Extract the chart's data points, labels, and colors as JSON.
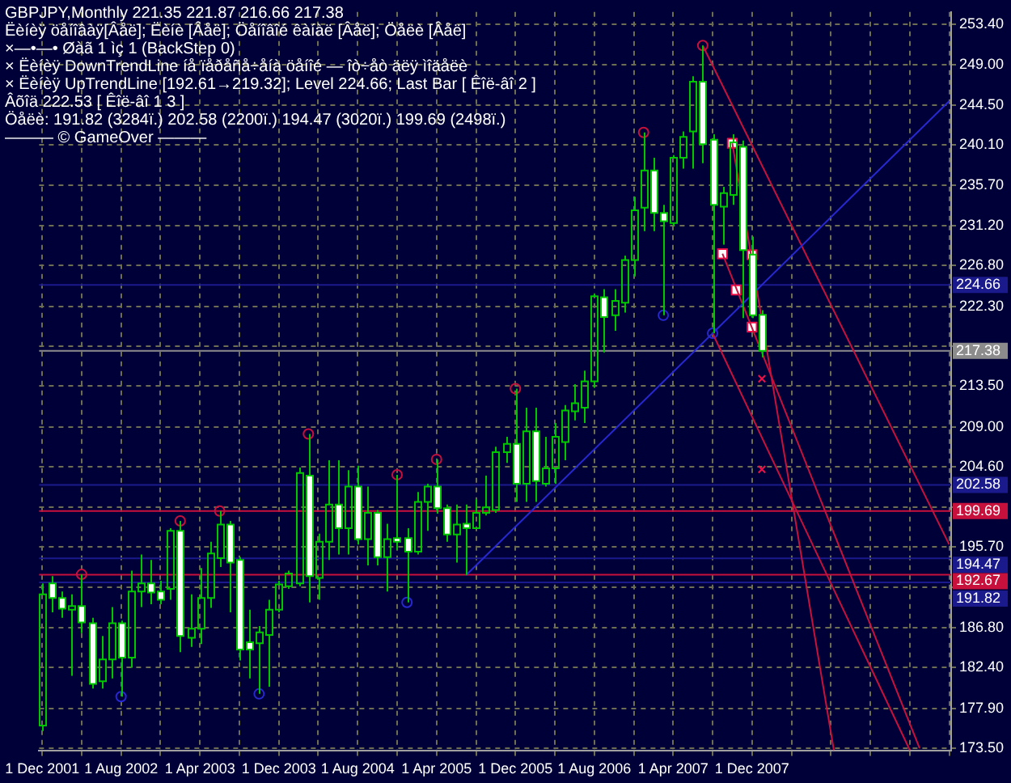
{
  "chart_data": {
    "type": "candlestick",
    "title": "GBPJPY,Monthly  221.35 221.87 216.66 217.38",
    "annotations": [
      "Ëèíèÿ öåíîâàÿ[Âåë]; Ëèíè [Âåë]; Öåíîâîé êàíàë [Âåë]; Öåëè [Âåë]",
      "×—•—• Øàã 1 ìç 1 (BackStep 0)",
      "× Ëèíèÿ DownTrendLine íå ïåðåñå÷åíà öåíîé — îò÷åò äëÿ ìîäåëè",
      "× Ëèíèÿ UpTrendLine [192.61→219.32]; Level 224.66; Last Bar [ Êîë-âî 2 ]",
      "Âõîä 222.53 [ Êîë-âî 1 3 ]",
      "Öåëè: 191.82 (3284ï.) 202.58 (2200ï.) 194.47 (3020ï.) 199.69 (2498ï.)",
      "——— © GameOver ———"
    ],
    "xlim": [
      "2001-11-22",
      "2009-08-07"
    ],
    "xticks": [
      {
        "value": "2001-12",
        "label": "1 Dec 2001"
      },
      {
        "value": "2002-04",
        "label": null
      },
      {
        "value": "2002-08",
        "label": "1 Aug 2002"
      },
      {
        "value": "2002-12",
        "label": null
      },
      {
        "value": "2003-04",
        "label": "1 Apr 2003"
      },
      {
        "value": "2003-08",
        "label": null
      },
      {
        "value": "2003-12",
        "label": "1 Dec 2003"
      },
      {
        "value": "2004-04",
        "label": null
      },
      {
        "value": "2004-08",
        "label": "1 Aug 2004"
      },
      {
        "value": "2004-12",
        "label": null
      },
      {
        "value": "2005-04",
        "label": "1 Apr 2005"
      },
      {
        "value": "2005-08",
        "label": null
      },
      {
        "value": "2005-12",
        "label": "1 Dec 2005"
      },
      {
        "value": "2006-04",
        "label": null
      },
      {
        "value": "2006-08",
        "label": "1 Aug 2006"
      },
      {
        "value": "2006-12",
        "label": null
      },
      {
        "value": "2007-04",
        "label": "1 Apr 2007"
      },
      {
        "value": "2007-08",
        "label": null
      },
      {
        "value": "2007-12",
        "label": "1 Dec 2007"
      },
      {
        "value": "2008-04",
        "label": null
      },
      {
        "value": "2008-08",
        "label": null
      },
      {
        "value": "2008-12",
        "label": null
      },
      {
        "value": "2009-04",
        "label": null
      },
      {
        "value": "2009-08",
        "label": null
      }
    ],
    "ylim": [
      173.2,
      254.8
    ],
    "yticks": [
      {
        "value": 253.4,
        "label": "253.40"
      },
      {
        "value": 249,
        "label": "249.00"
      },
      {
        "value": 244.5,
        "label": "244.50"
      },
      {
        "value": 240.1,
        "label": "240.10"
      },
      {
        "value": 235.7,
        "label": "235.70"
      },
      {
        "value": 231.2,
        "label": "231.20"
      },
      {
        "value": 226.8,
        "label": "226.80"
      },
      {
        "value": 222.3,
        "label": "222.30"
      },
      {
        "value": 217.9,
        "label": null
      },
      {
        "value": 213.5,
        "label": "213.50"
      },
      {
        "value": 209,
        "label": "209.00"
      },
      {
        "value": 204.6,
        "label": "204.60"
      },
      {
        "value": 200.1,
        "label": null
      },
      {
        "value": 195.7,
        "label": "195.70"
      },
      {
        "value": 191.3,
        "label": null
      },
      {
        "value": 186.8,
        "label": "186.80"
      },
      {
        "value": 182.4,
        "label": "182.40"
      },
      {
        "value": 177.9,
        "label": "177.90"
      },
      {
        "value": 173.5,
        "label": "173.50"
      }
    ],
    "grid": true,
    "ref_lines": [
      {
        "axis": "y",
        "value": 224.66,
        "label": "224.66",
        "color": "#1a1a8c"
      },
      {
        "axis": "y",
        "value": 202.58,
        "label": "202.58",
        "color": "#1a1a8c"
      },
      {
        "axis": "y",
        "value": 194.47,
        "label": "194.47",
        "color": "#1a1a8c"
      },
      {
        "axis": "y",
        "value": 191.82,
        "label": "191.82",
        "color": "#1a1a8c"
      },
      {
        "axis": "y",
        "value": 217.38,
        "label": "217.38",
        "color": "#8c8c8c"
      },
      {
        "axis": "y",
        "value": 199.69,
        "label": "199.69",
        "color": "#c8103c"
      },
      {
        "axis": "y",
        "value": 192.67,
        "label": "192.67",
        "color": "#c8103c"
      }
    ],
    "series": [
      {
        "color": "#00c800",
        "x": [
          "2001-12",
          "2002-01",
          "2002-02",
          "2002-03",
          "2002-04",
          "2002-05",
          "2002-06",
          "2002-07",
          "2002-08",
          "2002-09",
          "2002-10",
          "2002-11",
          "2002-12",
          "2003-01",
          "2003-02",
          "2003-03",
          "2003-04",
          "2003-05",
          "2003-06",
          "2003-07",
          "2003-08",
          "2003-09",
          "2003-10",
          "2003-11",
          "2003-12",
          "2004-01",
          "2004-02",
          "2004-03",
          "2004-04",
          "2004-05",
          "2004-06",
          "2004-07",
          "2004-08",
          "2004-09",
          "2004-10",
          "2004-11",
          "2004-12",
          "2005-01",
          "2005-02",
          "2005-03",
          "2005-04",
          "2005-05",
          "2005-06",
          "2005-07",
          "2005-08",
          "2005-09",
          "2005-10",
          "2005-11",
          "2005-12",
          "2006-01",
          "2006-02",
          "2006-03",
          "2006-04",
          "2006-05",
          "2006-06",
          "2006-07",
          "2006-08",
          "2006-09",
          "2006-10",
          "2006-11",
          "2006-12",
          "2007-01",
          "2007-02",
          "2007-03",
          "2007-04",
          "2007-05",
          "2007-06",
          "2007-07",
          "2007-08",
          "2007-09",
          "2007-10",
          "2007-11",
          "2007-12",
          "2008-01"
        ],
        "ohlc": [
          [
            176,
            191.7,
            175.4,
            190.5
          ],
          [
            191.7,
            192.5,
            188.5,
            190.1
          ],
          [
            190.1,
            190.8,
            187.9,
            188.9
          ],
          [
            188.8,
            190.5,
            181.5,
            189.2
          ],
          [
            189.2,
            192.7,
            186.2,
            187.4
          ],
          [
            187.3,
            187.9,
            180.1,
            180.6
          ],
          [
            180.9,
            185.9,
            180.1,
            183.3
          ],
          [
            183.3,
            189.1,
            181.2,
            187.3
          ],
          [
            187.3,
            187.6,
            179.2,
            183.5
          ],
          [
            183.5,
            193.1,
            182.4,
            190.8
          ],
          [
            190.8,
            194.9,
            189.1,
            191.7
          ],
          [
            191.7,
            194.3,
            189.4,
            190.7
          ],
          [
            190.8,
            192,
            189.4,
            189.9
          ],
          [
            191.1,
            197.8,
            189.9,
            197.5
          ],
          [
            197.5,
            198.6,
            184.1,
            185.9
          ],
          [
            185.7,
            190.5,
            184.7,
            186.7
          ],
          [
            186.7,
            193.4,
            185,
            190.1
          ],
          [
            190.1,
            196.3,
            189,
            195
          ],
          [
            194.5,
            199.7,
            193.5,
            198.2
          ],
          [
            198.2,
            198.6,
            188.5,
            194
          ],
          [
            194.3,
            194.6,
            183.2,
            184.4
          ],
          [
            185.2,
            188.8,
            181.2,
            184.4
          ],
          [
            185.1,
            187,
            179.5,
            186.3
          ],
          [
            186,
            189.9,
            180.3,
            188.8
          ],
          [
            188.8,
            192,
            188.5,
            191.6
          ],
          [
            191.4,
            193.1,
            191.1,
            192.8
          ],
          [
            191.7,
            204.5,
            191.4,
            203.9
          ],
          [
            203.6,
            208.2,
            189.6,
            192.5
          ],
          [
            192.3,
            197.2,
            189.9,
            196.3
          ],
          [
            196.3,
            205.3,
            194.3,
            200.4
          ],
          [
            200.4,
            205.3,
            194.9,
            197.8
          ],
          [
            197.8,
            204.2,
            194.9,
            202.4
          ],
          [
            202.4,
            204.7,
            196,
            196.6
          ],
          [
            196.6,
            202.4,
            193.7,
            199.5
          ],
          [
            199.5,
            199.8,
            193.7,
            194.6
          ],
          [
            194.6,
            198.3,
            190.8,
            196.6
          ],
          [
            196.7,
            203.7,
            195.4,
            196.3
          ],
          [
            196.7,
            197.8,
            189.6,
            195.2
          ],
          [
            195.2,
            201.8,
            194.9,
            200.7
          ],
          [
            200.7,
            202.7,
            197.5,
            202.4
          ],
          [
            202.4,
            205.4,
            199.4,
            200
          ],
          [
            200,
            200.4,
            196.3,
            197.1
          ],
          [
            197.1,
            200.4,
            194,
            198.2
          ],
          [
            198.3,
            200.4,
            192.61,
            197.8
          ],
          [
            197.8,
            201,
            197.8,
            199.5
          ],
          [
            199.5,
            203.6,
            199.2,
            200.1
          ],
          [
            199.8,
            206.8,
            199.5,
            206.2
          ],
          [
            206.2,
            207.9,
            205,
            207.1
          ],
          [
            207.1,
            213.2,
            200.7,
            202.7
          ],
          [
            202.7,
            211.1,
            200.7,
            208.5
          ],
          [
            208.5,
            211.1,
            200.7,
            203
          ],
          [
            202.7,
            207.9,
            202.4,
            204.4
          ],
          [
            204.4,
            209.4,
            202.7,
            207.9
          ],
          [
            207.3,
            211.4,
            205.3,
            210.8
          ],
          [
            210.7,
            213.7,
            209.7,
            211.6
          ],
          [
            211.1,
            215.2,
            209.4,
            214
          ],
          [
            214,
            223.7,
            213.3,
            223.4
          ],
          [
            223.3,
            224.2,
            217.2,
            221.1
          ],
          [
            221.3,
            224.2,
            219.6,
            222.9
          ],
          [
            222.7,
            227.9,
            221.6,
            227.4
          ],
          [
            227.4,
            234.4,
            225.6,
            232.9
          ],
          [
            233.2,
            241.5,
            230.6,
            237.3
          ],
          [
            237.3,
            238.7,
            230.6,
            232.6
          ],
          [
            232.6,
            233.5,
            221.3,
            231.7
          ],
          [
            231.5,
            239,
            231.2,
            238.7
          ],
          [
            238.7,
            241.6,
            237.5,
            241
          ],
          [
            241.6,
            247.7,
            237.5,
            247.1
          ],
          [
            247.1,
            251.1,
            238.1,
            240.2
          ],
          [
            240.7,
            241.3,
            219.32,
            233.5
          ],
          [
            233.3,
            235.5,
            229.1,
            234.8
          ],
          [
            234.6,
            241.3,
            233.5,
            240.4
          ],
          [
            239.9,
            240.6,
            221,
            228.5
          ],
          [
            228,
            230,
            221,
            221.3
          ],
          [
            221.35,
            221.87,
            216.66,
            217.38
          ]
        ]
      },
      {
        "type": "line",
        "color": "#2828d0",
        "x": [
          "2005-07",
          "2009-08"
        ],
        "values": [
          192.61,
          244.96
        ]
      },
      {
        "type": "line",
        "color": "#c8103c",
        "x": [
          "2007-07",
          "2009-08"
        ],
        "values": [
          251.1,
          196
        ]
      },
      {
        "type": "line",
        "color": "#c8103c",
        "x": [
          "2007-08",
          "2009-04"
        ],
        "values": [
          219.32,
          173.3
        ]
      },
      {
        "type": "line",
        "color": "#c8103c",
        "x": [
          "2007-10",
          "2008-08-10"
        ],
        "values": [
          240.3,
          173.3
        ]
      },
      {
        "type": "line",
        "color": "#c8103c",
        "x": [
          "2007-09",
          "2009-05"
        ],
        "values": [
          228.1,
          173.5
        ]
      },
      {
        "type": "scatter",
        "marker": "circle",
        "color": "#c8103c",
        "x": [
          "2002-04",
          "2003-02",
          "2003-06",
          "2004-03",
          "2004-12",
          "2005-04",
          "2005-12",
          "2007-01",
          "2007-07"
        ],
        "values": [
          192.7,
          198.6,
          199.7,
          208.2,
          203.7,
          205.4,
          213.2,
          241.5,
          251.1
        ]
      },
      {
        "type": "scatter",
        "marker": "circle",
        "color": "#2828d0",
        "x": [
          "2002-08",
          "2003-10",
          "2005-01",
          "2007-03",
          "2007-08"
        ],
        "values": [
          179.2,
          179.5,
          189.6,
          221.3,
          219.32
        ]
      },
      {
        "type": "scatter",
        "marker": "square",
        "color": "#f01048",
        "x": [
          "2007-10",
          "2007-12",
          "2007-09",
          "2007-10-13",
          "2007-12"
        ],
        "values": [
          240.3,
          228,
          228.1,
          224.1,
          220
        ]
      },
      {
        "type": "scatter",
        "marker": "cross",
        "color": "#f01048",
        "x": [
          "2008-01",
          "2008-01"
        ],
        "values": [
          214.3,
          204.3
        ]
      }
    ]
  }
}
